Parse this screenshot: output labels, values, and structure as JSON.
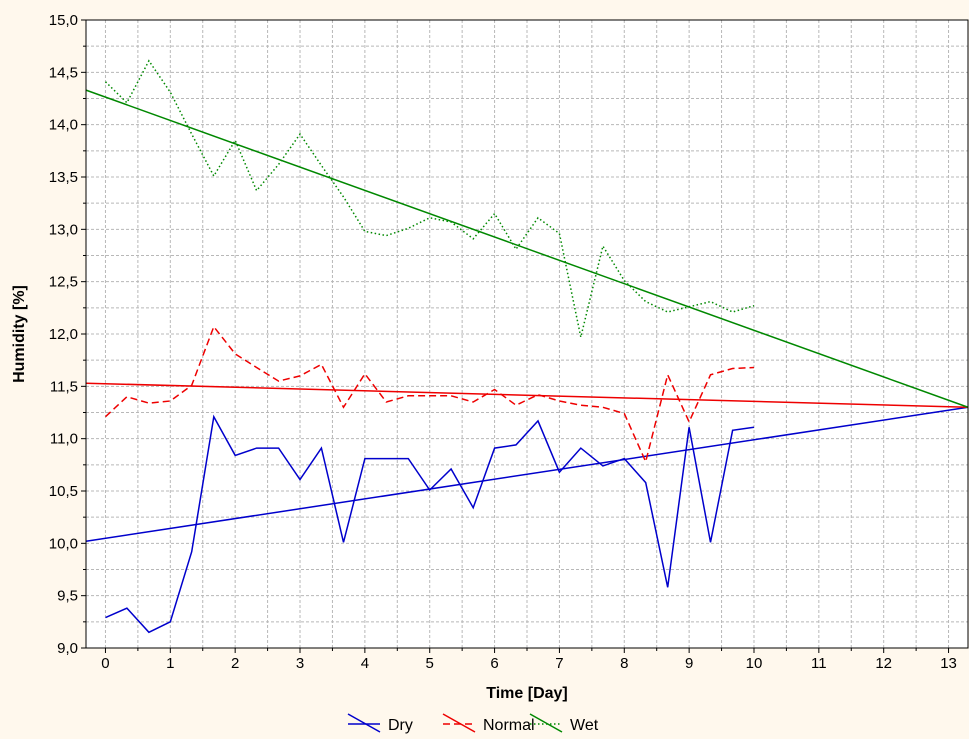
{
  "chart_data": {
    "type": "line",
    "xlabel": "Time [Day]",
    "ylabel": "Humidity [%]",
    "xlim": [
      -0.3,
      13.3
    ],
    "ylim": [
      9.0,
      15.0
    ],
    "x_ticks": [
      0,
      1,
      2,
      3,
      4,
      5,
      6,
      7,
      8,
      9,
      10,
      11,
      12,
      13
    ],
    "y_ticks": [
      "9,0",
      "9,5",
      "10,0",
      "10,5",
      "11,0",
      "11,5",
      "12,0",
      "12,5",
      "13,0",
      "13,5",
      "14,0",
      "14,5",
      "15,0"
    ],
    "y_tick_values": [
      9.0,
      9.5,
      10.0,
      10.5,
      11.0,
      11.5,
      12.0,
      12.5,
      13.0,
      13.5,
      14.0,
      14.5,
      15.0
    ],
    "grid": true,
    "legend_position": "bottom-center",
    "series": [
      {
        "name": "Dry",
        "color": "#0000cc",
        "dash": "solid",
        "x": [
          0,
          0.33,
          0.67,
          1,
          1.33,
          1.67,
          2,
          2.33,
          2.67,
          3,
          3.33,
          3.67,
          4,
          4.33,
          4.67,
          5,
          5.33,
          5.67,
          6,
          6.33,
          6.67,
          7,
          7.33,
          7.67,
          8,
          8.33,
          8.67,
          9,
          9.33,
          9.67,
          10
        ],
        "y": [
          9.29,
          9.38,
          9.15,
          9.25,
          9.92,
          11.21,
          10.84,
          10.91,
          10.91,
          10.61,
          10.91,
          10.01,
          10.81,
          10.81,
          10.81,
          10.51,
          10.71,
          10.34,
          10.91,
          10.94,
          11.17,
          10.68,
          10.91,
          10.74,
          10.81,
          10.58,
          9.58,
          11.11,
          10.01,
          11.08,
          11.11
        ],
        "trend": {
          "x": [
            -0.3,
            13.3
          ],
          "y": [
            10.02,
            11.3
          ]
        }
      },
      {
        "name": "Normal",
        "color": "#ee0000",
        "dash": "dashed",
        "x": [
          0,
          0.33,
          0.67,
          1,
          1.33,
          1.67,
          2,
          2.33,
          2.67,
          3,
          3.33,
          3.67,
          4,
          4.33,
          4.67,
          5,
          5.33,
          5.67,
          6,
          6.33,
          6.67,
          7,
          7.33,
          7.67,
          8,
          8.33,
          8.67,
          9,
          9.33,
          9.67,
          10
        ],
        "y": [
          11.21,
          11.4,
          11.34,
          11.36,
          11.51,
          12.07,
          11.81,
          11.68,
          11.55,
          11.6,
          11.71,
          11.3,
          11.62,
          11.35,
          11.41,
          11.41,
          11.41,
          11.35,
          11.47,
          11.32,
          11.42,
          11.36,
          11.32,
          11.3,
          11.24,
          10.78,
          11.61,
          11.16,
          11.61,
          11.67,
          11.68
        ],
        "trend": {
          "x": [
            -0.3,
            13.3
          ],
          "y": [
            11.53,
            11.3
          ]
        }
      },
      {
        "name": "Wet",
        "color": "#008800",
        "dash": "dotted",
        "x": [
          0,
          0.33,
          0.67,
          1,
          1.33,
          1.67,
          2,
          2.33,
          2.67,
          3,
          3.33,
          3.67,
          4,
          4.33,
          4.67,
          5,
          5.33,
          5.67,
          6,
          6.33,
          6.67,
          7,
          7.33,
          7.67,
          8,
          8.33,
          8.67,
          9,
          9.33,
          9.67,
          10
        ],
        "y": [
          14.41,
          14.21,
          14.61,
          14.31,
          13.91,
          13.51,
          13.85,
          13.37,
          13.62,
          13.91,
          13.61,
          13.31,
          12.98,
          12.94,
          13.01,
          13.11,
          13.07,
          12.91,
          13.15,
          12.81,
          13.11,
          12.96,
          11.97,
          12.84,
          12.51,
          12.31,
          12.21,
          12.26,
          12.31,
          12.21,
          12.27
        ],
        "trend": {
          "x": [
            -0.3,
            13.3
          ],
          "y": [
            14.33,
            11.3
          ]
        }
      }
    ]
  }
}
